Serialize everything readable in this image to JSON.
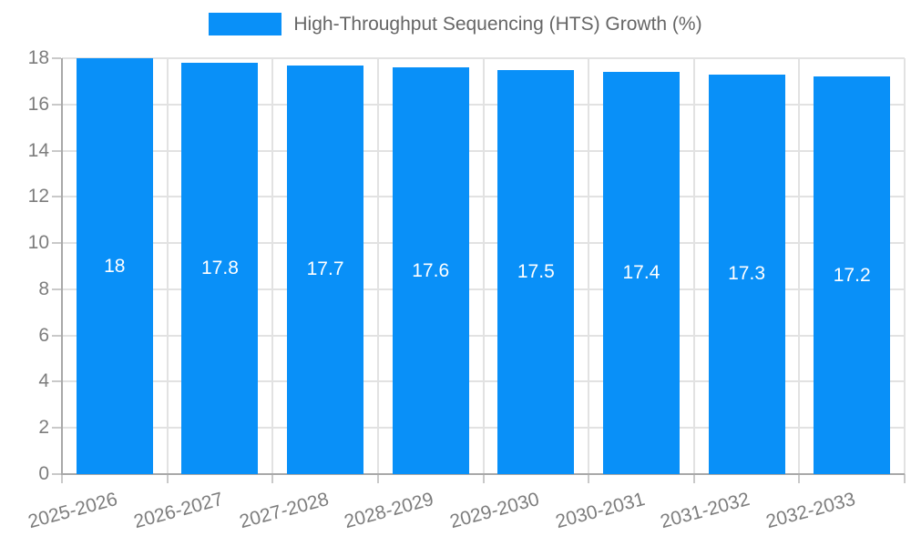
{
  "chart_data": {
    "type": "bar",
    "title": "High-Throughput Sequencing (HTS) Growth (%)",
    "categories": [
      "2025-2026",
      "2026-2027",
      "2027-2028",
      "2028-2029",
      "2029-2030",
      "2030-2031",
      "2031-2032",
      "2032-2033"
    ],
    "values": [
      18,
      17.8,
      17.7,
      17.6,
      17.5,
      17.4,
      17.3,
      17.2
    ],
    "value_labels": [
      "18",
      "17.8",
      "17.7",
      "17.6",
      "17.5",
      "17.4",
      "17.3",
      "17.2"
    ],
    "xlabel": "",
    "ylabel": "",
    "ylim": [
      0,
      18
    ],
    "yticks": [
      0,
      2,
      4,
      6,
      8,
      10,
      12,
      14,
      16,
      18
    ],
    "grid": true,
    "legend_position": "top",
    "colors": {
      "bar": "#0990f8",
      "bar_label": "#ffffff",
      "grid": "#e2e2e2",
      "axis": "#a8a8a8",
      "tick": "#c9c9c9",
      "tick_label": "#7d7d7d",
      "legend_text": "#666666",
      "background": "#ffffff"
    }
  }
}
